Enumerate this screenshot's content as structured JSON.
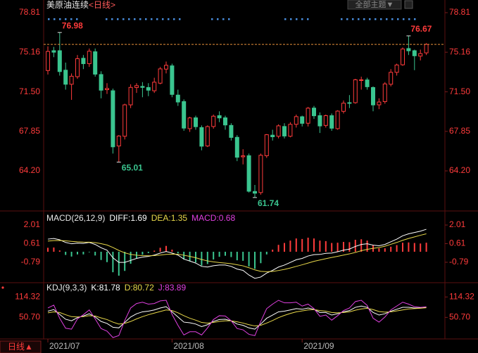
{
  "header": {
    "theme_button": "全部主题▼",
    "period_button": "日线▲"
  },
  "chart_data": [
    {
      "type": "candlestick",
      "title": "美原油连续",
      "subtitle": "<日线>",
      "categories": [
        "2021/07",
        null,
        null,
        null,
        null,
        null,
        null,
        null,
        null,
        null,
        null,
        null,
        null,
        null,
        null,
        null,
        null,
        null,
        null,
        null,
        null,
        "2021/08",
        null,
        null,
        null,
        null,
        null,
        null,
        null,
        null,
        null,
        null,
        null,
        null,
        null,
        null,
        null,
        null,
        null,
        null,
        null,
        null,
        null,
        "2021/09",
        null,
        null,
        null,
        null,
        null,
        null,
        null,
        null,
        null,
        null,
        null,
        null,
        null,
        null,
        null,
        null,
        null,
        null,
        null,
        null,
        null
      ],
      "open": [
        73.47,
        75.3,
        75.3,
        73.5,
        72.2,
        72.9,
        74.6,
        74.1,
        75.2,
        73.1,
        71.7,
        71.6,
        66.5,
        67.4,
        70.3,
        71.9,
        72.0,
        71.9,
        71.6,
        72.3,
        73.6,
        73.9,
        71.2,
        70.6,
        68.1,
        69.1,
        68.2,
        66.5,
        68.3,
        69.3,
        69.1,
        68.4,
        67.3,
        65.5,
        65.6,
        62.3,
        62.2,
        65.6,
        67.5,
        67.4,
        68.3,
        67.4,
        68.5,
        69.2,
        68.6,
        70.0,
        69.3,
        68.4,
        69.3,
        68.1,
        69.7,
        70.5,
        70.5,
        72.6,
        72.6,
        71.9,
        70.3,
        70.6,
        72.2,
        73.3,
        74.0,
        75.5,
        75.3,
        74.8,
        75.1
      ],
      "high": [
        75.7,
        75.65,
        76.98,
        74.2,
        73.2,
        74.9,
        74.9,
        75.5,
        75.5,
        73.4,
        72.3,
        71.8,
        67.5,
        70.4,
        72.2,
        72.3,
        72.4,
        72.3,
        72.8,
        73.8,
        74.3,
        74.1,
        71.7,
        70.8,
        69.2,
        69.3,
        68.4,
        68.4,
        69.4,
        69.7,
        69.3,
        68.6,
        67.5,
        66.2,
        65.8,
        62.9,
        65.8,
        67.6,
        68.0,
        68.5,
        68.6,
        68.7,
        69.4,
        69.3,
        70.1,
        70.2,
        69.6,
        69.4,
        69.5,
        69.8,
        70.7,
        71.2,
        72.7,
        72.9,
        72.8,
        72.0,
        70.9,
        72.4,
        73.6,
        74.1,
        75.6,
        76.67,
        75.4,
        75.4,
        76.0
      ],
      "low": [
        73.1,
        74.7,
        73.0,
        71.7,
        70.76,
        72.7,
        73.6,
        73.8,
        72.9,
        70.9,
        71.3,
        65.8,
        65.01,
        67.1,
        70.0,
        71.4,
        71.0,
        71.1,
        71.4,
        72.2,
        73.2,
        71.0,
        70.2,
        67.9,
        67.8,
        68.0,
        66.1,
        66.4,
        68.1,
        68.7,
        68.0,
        67.0,
        65.1,
        64.8,
        62.2,
        61.74,
        62.0,
        65.4,
        67.0,
        67.2,
        67.2,
        67.3,
        68.2,
        68.3,
        68.3,
        69.0,
        67.7,
        68.2,
        67.9,
        68.0,
        69.5,
        70.0,
        70.4,
        71.7,
        71.7,
        69.7,
        69.9,
        70.4,
        72.0,
        73.0,
        73.9,
        74.9,
        73.5,
        74.4,
        74.9
      ],
      "close": [
        75.23,
        75.16,
        73.37,
        72.2,
        72.94,
        74.56,
        74.1,
        75.25,
        73.13,
        71.65,
        71.81,
        66.42,
        67.42,
        70.3,
        71.91,
        72.07,
        71.91,
        71.65,
        72.39,
        73.62,
        73.95,
        71.26,
        70.56,
        68.15,
        69.09,
        68.28,
        66.48,
        68.29,
        69.25,
        69.09,
        68.44,
        67.29,
        65.46,
        65.59,
        62.32,
        62.14,
        65.64,
        67.54,
        67.35,
        68.36,
        67.42,
        68.5,
        69.21,
        68.59,
        69.99,
        69.29,
        68.35,
        69.3,
        68.14,
        69.72,
        70.45,
        70.46,
        72.61,
        72.61,
        71.97,
        70.29,
        70.56,
        72.23,
        73.3,
        73.98,
        75.45,
        75.29,
        74.83,
        75.03,
        75.88
      ],
      "up_color": "#ff3b3b",
      "down_color": "#3ac58f",
      "last_line_color": "#e8903a",
      "ylim": [
        60.63,
        79.33
      ],
      "yticks": [
        {
          "value": 64.2,
          "label": "64.20"
        },
        67.85,
        {
          "value": 71.5,
          "label": "71.50"
        },
        75.16,
        78.81
      ]
    },
    {
      "type": "combo",
      "title": "MACD(26,12,9)",
      "ylim": [
        -2.22,
        2.91
      ],
      "yticks": [
        -0.79,
        0.61,
        2.01
      ],
      "series": [
        {
          "name": "DIFF:",
          "color": "#ffffff",
          "values": [
            0.95,
            1.0,
            0.9,
            0.7,
            0.6,
            0.65,
            0.63,
            0.7,
            0.55,
            0.3,
            0.12,
            -0.45,
            -0.8,
            -0.8,
            -0.65,
            -0.5,
            -0.4,
            -0.35,
            -0.25,
            -0.1,
            0.02,
            -0.1,
            -0.25,
            -0.55,
            -0.7,
            -0.85,
            -1.1,
            -1.15,
            -1.05,
            -1.0,
            -1.0,
            -1.1,
            -1.3,
            -1.4,
            -1.75,
            -2.0,
            -1.9,
            -1.6,
            -1.4,
            -1.15,
            -1.0,
            -0.8,
            -0.6,
            -0.5,
            -0.32,
            -0.22,
            -0.2,
            -0.12,
            -0.1,
            0.0,
            0.12,
            0.2,
            0.4,
            0.55,
            0.6,
            0.5,
            0.45,
            0.55,
            0.75,
            0.95,
            1.2,
            1.35,
            1.45,
            1.55,
            1.69
          ]
        },
        {
          "name": "DEA:",
          "color": "#e8d84a",
          "values": [
            0.8,
            0.84,
            0.85,
            0.82,
            0.78,
            0.75,
            0.73,
            0.72,
            0.69,
            0.61,
            0.51,
            0.32,
            0.1,
            -0.08,
            -0.2,
            -0.26,
            -0.29,
            -0.3,
            -0.29,
            -0.25,
            -0.2,
            -0.18,
            -0.19,
            -0.26,
            -0.35,
            -0.45,
            -0.58,
            -0.69,
            -0.76,
            -0.81,
            -0.85,
            -0.9,
            -0.98,
            -1.06,
            -1.2,
            -1.36,
            -1.47,
            -1.5,
            -1.48,
            -1.41,
            -1.33,
            -1.22,
            -1.1,
            -0.98,
            -0.85,
            -0.72,
            -0.62,
            -0.52,
            -0.43,
            -0.34,
            -0.25,
            -0.16,
            -0.05,
            0.08,
            0.18,
            0.26,
            0.32,
            0.42,
            0.56,
            0.7,
            0.86,
            1.0,
            1.12,
            1.24,
            1.35
          ]
        },
        {
          "name": "MACD:",
          "color": "#e040e0",
          "kind": "bar",
          "up_color": "#ff3b3b",
          "down_color": "#3ac58f",
          "values": [
            0.3,
            0.32,
            0.1,
            -0.24,
            -0.36,
            -0.2,
            -0.2,
            -0.04,
            -0.28,
            -0.62,
            -0.78,
            -1.54,
            -1.8,
            -1.44,
            -0.9,
            -0.48,
            -0.22,
            -0.1,
            0.08,
            0.3,
            0.44,
            0.16,
            -0.12,
            -0.58,
            -0.7,
            -0.8,
            -1.04,
            -0.92,
            -0.58,
            -0.38,
            -0.3,
            -0.4,
            -0.64,
            -0.68,
            -1.1,
            -1.28,
            -0.86,
            -0.2,
            0.16,
            0.52,
            0.66,
            0.84,
            1.0,
            0.96,
            1.06,
            1.0,
            0.84,
            0.8,
            0.66,
            0.68,
            0.74,
            0.72,
            0.9,
            0.94,
            0.84,
            0.48,
            0.26,
            0.26,
            0.38,
            0.5,
            0.68,
            0.7,
            0.66,
            0.62,
            0.68
          ]
        }
      ]
    },
    {
      "type": "line",
      "title": "KDJ(9,3,3)",
      "ylim": [
        -12,
        150
      ],
      "yticks": [
        {
          "value": 50.7,
          "label": "50.70"
        },
        114.32
      ],
      "series": [
        {
          "name": "K:",
          "color": "#ffffff",
          "values": [
            70,
            75,
            60,
            45,
            40,
            50,
            55,
            62,
            52,
            38,
            32,
            20,
            18,
            35,
            52,
            62,
            68,
            70,
            74,
            80,
            84,
            68,
            52,
            36,
            34,
            30,
            22,
            28,
            38,
            44,
            45,
            40,
            30,
            26,
            18,
            14,
            30,
            48,
            58,
            68,
            70,
            74,
            78,
            76,
            80,
            76,
            66,
            66,
            58,
            62,
            68,
            72,
            82,
            86,
            82,
            66,
            58,
            62,
            70,
            76,
            82,
            82,
            80,
            80,
            81.78
          ]
        },
        {
          "name": "D:",
          "color": "#e8d84a",
          "values": [
            65,
            68,
            66,
            59,
            53,
            52,
            53,
            56,
            55,
            49,
            44,
            36,
            30,
            32,
            38,
            46,
            53,
            59,
            64,
            69,
            74,
            72,
            65,
            56,
            48,
            42,
            35,
            33,
            35,
            38,
            40,
            40,
            37,
            33,
            28,
            24,
            26,
            33,
            41,
            50,
            57,
            63,
            68,
            71,
            74,
            75,
            72,
            70,
            66,
            65,
            66,
            68,
            73,
            77,
            79,
            75,
            69,
            67,
            68,
            71,
            74,
            77,
            78,
            79,
            80.72
          ]
        },
        {
          "name": "J:",
          "color": "#e040e0",
          "values": [
            80,
            89,
            48,
            17,
            14,
            46,
            59,
            74,
            46,
            16,
            8,
            -12,
            -6,
            41,
            80,
            94,
            98,
            92,
            94,
            102,
            104,
            60,
            26,
            -4,
            6,
            6,
            -4,
            18,
            44,
            56,
            55,
            40,
            16,
            12,
            -2,
            -6,
            38,
            78,
            92,
            104,
            96,
            96,
            98,
            86,
            92,
            78,
            54,
            58,
            42,
            56,
            72,
            80,
            100,
            104,
            88,
            48,
            36,
            52,
            74,
            86,
            98,
            92,
            84,
            82,
            83.89
          ]
        }
      ]
    }
  ]
}
